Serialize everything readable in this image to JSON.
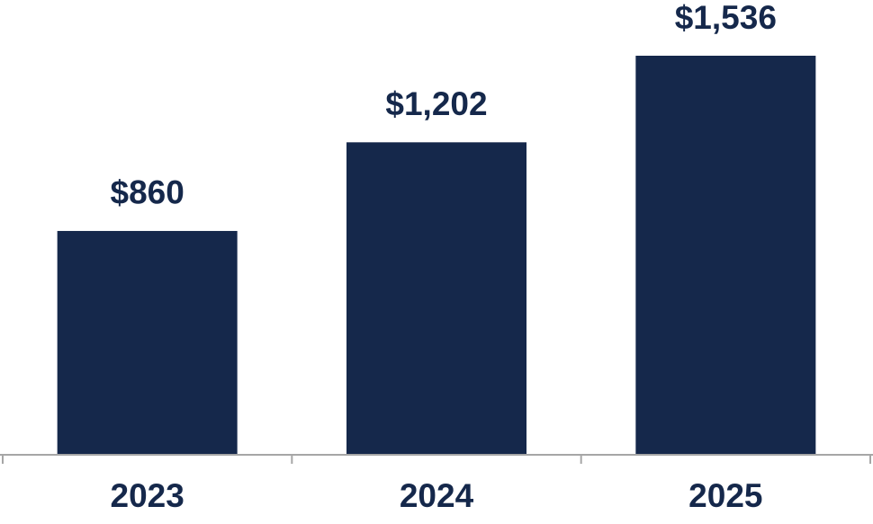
{
  "chart_data": {
    "type": "bar",
    "categories": [
      "2023",
      "2024",
      "2025"
    ],
    "values": [
      860,
      1202,
      1536
    ],
    "value_labels": [
      "$860",
      "$1,202",
      "$1,536"
    ],
    "color": "#15284b"
  }
}
